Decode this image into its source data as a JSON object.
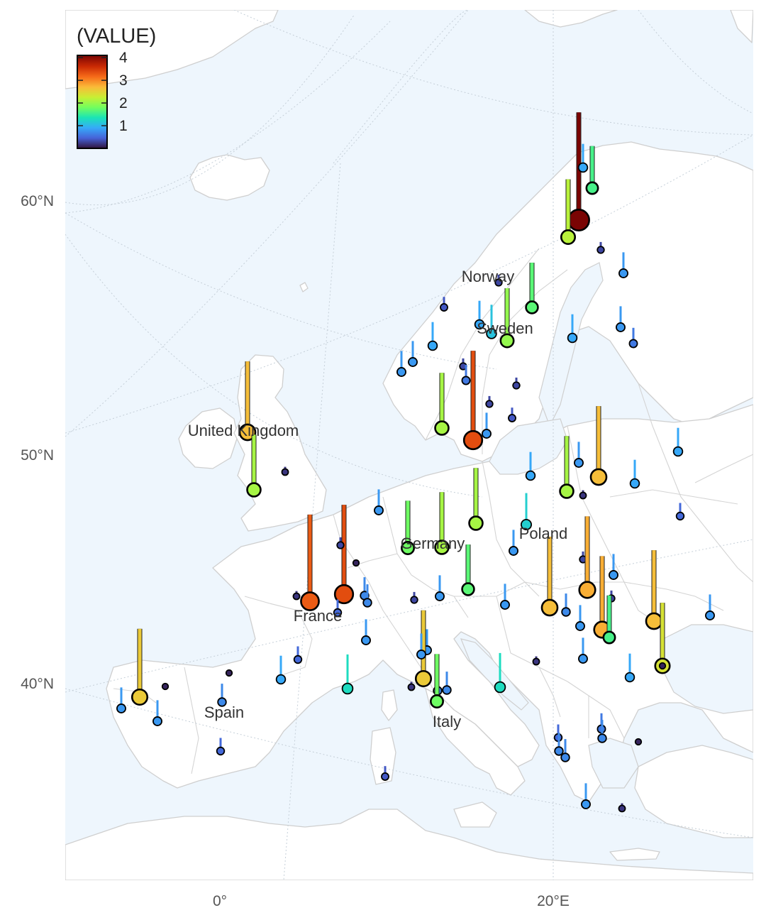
{
  "legend": {
    "title": "(VALUE)",
    "ticks": [
      "4",
      "3",
      "2",
      "1"
    ],
    "tick_values": [
      4,
      3,
      2,
      1
    ],
    "range": [
      0,
      4.1
    ]
  },
  "axes": {
    "y_labels": [
      "60°N",
      "50°N",
      "40°N"
    ],
    "x_labels": [
      "0°",
      "20°E"
    ]
  },
  "country_labels": [
    "Norway",
    "Sweden",
    "United Kingdom",
    "Germany",
    "Poland",
    "France",
    "Spain",
    "Italy"
  ],
  "colors": {
    "ocean": "#eef6fd",
    "land": "#ffffff",
    "border": "#d0d0d0",
    "graticule": "#c9d3dc",
    "palette": [
      "#30123b",
      "#4662d7",
      "#36aaf9",
      "#1ae4b6",
      "#72fe5e",
      "#c8ef34",
      "#faba39",
      "#f66b19",
      "#ca2a04",
      "#7a0403"
    ]
  },
  "chart_data": {
    "type": "map",
    "description_units": "value",
    "points": [
      {
        "value": 4.1
      },
      {
        "value": 0.9
      },
      {
        "value": 1.6
      },
      {
        "value": 2.2
      },
      {
        "value": 0.3
      },
      {
        "value": 0.8
      },
      {
        "value": 0.3
      },
      {
        "value": 1.7
      },
      {
        "value": 0.9
      },
      {
        "value": 0.4
      },
      {
        "value": 2.0
      },
      {
        "value": 0.9
      },
      {
        "value": 0.8
      },
      {
        "value": 0.6
      },
      {
        "value": 1.1
      },
      {
        "value": 0.9
      },
      {
        "value": 0.8
      },
      {
        "value": 0.8
      },
      {
        "value": 0.3
      },
      {
        "value": 0.6
      },
      {
        "value": 0.3
      },
      {
        "value": 0.3
      },
      {
        "value": 2.1
      },
      {
        "value": 3.4
      },
      {
        "value": 0.8
      },
      {
        "value": 0.4
      },
      {
        "value": 2.7
      },
      {
        "value": 2.1
      },
      {
        "value": 0.2
      },
      {
        "value": 0.9
      },
      {
        "value": 0.9
      },
      {
        "value": 0.8
      },
      {
        "value": 2.1
      },
      {
        "value": 0.2
      },
      {
        "value": 2.7
      },
      {
        "value": 0.9
      },
      {
        "value": 0.5
      },
      {
        "value": 0.8
      },
      {
        "value": 1.8
      },
      {
        "value": 2.1
      },
      {
        "value": 2.1
      },
      {
        "value": 1.2
      },
      {
        "value": 0.8
      },
      {
        "value": 0.3
      },
      {
        "value": 0.1
      },
      {
        "value": 3.3
      },
      {
        "value": 3.4
      },
      {
        "value": 0.3
      },
      {
        "value": 0.7
      },
      {
        "value": 0.7
      },
      {
        "value": 0.3
      },
      {
        "value": 1.7
      },
      {
        "value": 0.8
      },
      {
        "value": 0.5
      },
      {
        "value": 0.2
      },
      {
        "value": 0.8
      },
      {
        "value": 0.7
      },
      {
        "value": 2.7
      },
      {
        "value": 0.8
      },
      {
        "value": 2.8
      },
      {
        "value": 0.8
      },
      {
        "value": 0.3
      },
      {
        "value": 2.8
      },
      {
        "value": 1.6
      },
      {
        "value": 2.7
      },
      {
        "value": 0.8
      },
      {
        "value": 0.8
      },
      {
        "value": 0.8
      },
      {
        "value": 2.6
      },
      {
        "value": 0.8
      },
      {
        "value": 1.3
      },
      {
        "value": 0.9
      },
      {
        "value": 0.5
      },
      {
        "value": 0.1
      },
      {
        "value": 0.2
      },
      {
        "value": 0.8
      },
      {
        "value": 0.9
      },
      {
        "value": 1.3
      },
      {
        "value": 0.2
      },
      {
        "value": 0.7
      },
      {
        "value": 0.7
      },
      {
        "value": 0.8
      },
      {
        "value": 0.8
      },
      {
        "value": 0.1
      },
      {
        "value": 2.6
      },
      {
        "value": 0.7
      },
      {
        "value": 0.5
      },
      {
        "value": 0.4
      },
      {
        "value": 0.5
      },
      {
        "value": 0.7
      },
      {
        "value": 0.7
      },
      {
        "value": 0.6
      },
      {
        "value": 0.1
      },
      {
        "value": 2.4
      },
      {
        "value": 0.8
      },
      {
        "value": 0.2
      },
      {
        "value": 0.7
      },
      {
        "value": 1.8
      },
      {
        "value": 0.1
      }
    ]
  }
}
